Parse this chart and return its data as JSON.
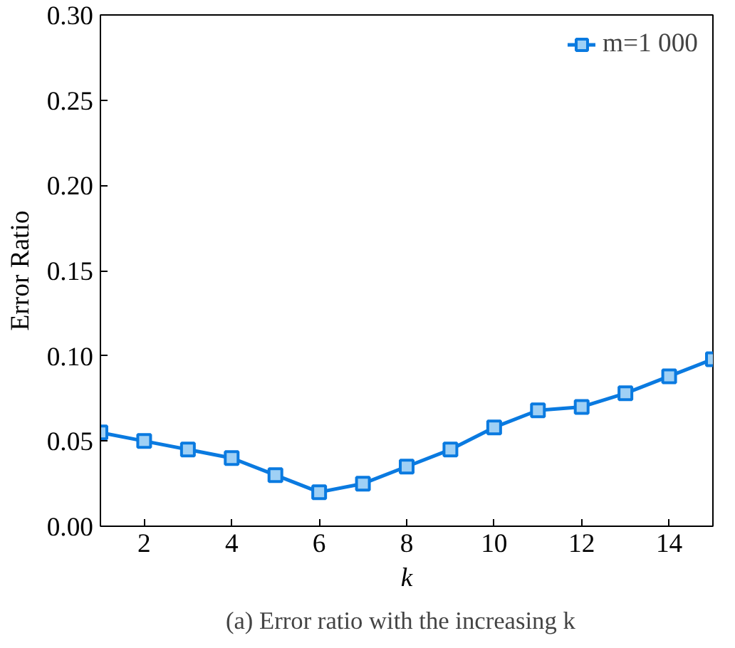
{
  "chart_data": {
    "type": "line",
    "xlabel": "k",
    "ylabel": "Error Ratio",
    "annotations": [
      "(a)   Error ratio with the increasing k"
    ],
    "x": [
      1,
      2,
      3,
      4,
      5,
      6,
      7,
      8,
      9,
      10,
      11,
      12,
      13,
      14,
      15
    ],
    "series": [
      {
        "name": "m=1 000",
        "color": "#0a7ae0",
        "values": [
          0.055,
          0.05,
          0.045,
          0.04,
          0.03,
          0.02,
          0.025,
          0.035,
          0.045,
          0.058,
          0.068,
          0.07,
          0.078,
          0.088,
          0.098
        ]
      }
    ],
    "xlim": [
      1,
      15
    ],
    "xticks": [
      2,
      4,
      6,
      8,
      10,
      12,
      14
    ],
    "ylim": [
      0,
      0.3
    ],
    "yticks": [
      {
        "value": 0,
        "label": "0.00"
      },
      {
        "value": 0.05,
        "label": "0.05"
      },
      {
        "value": 0.1,
        "label": "0.10"
      },
      {
        "value": 0.15,
        "label": "0.15"
      },
      {
        "value": 0.2,
        "label": "0.20"
      },
      {
        "value": 0.25,
        "label": "0.25"
      },
      {
        "value": 0.3,
        "label": "0.30"
      }
    ],
    "grid": false,
    "legend": "top right",
    "marker": "square",
    "line_style": "solid"
  }
}
